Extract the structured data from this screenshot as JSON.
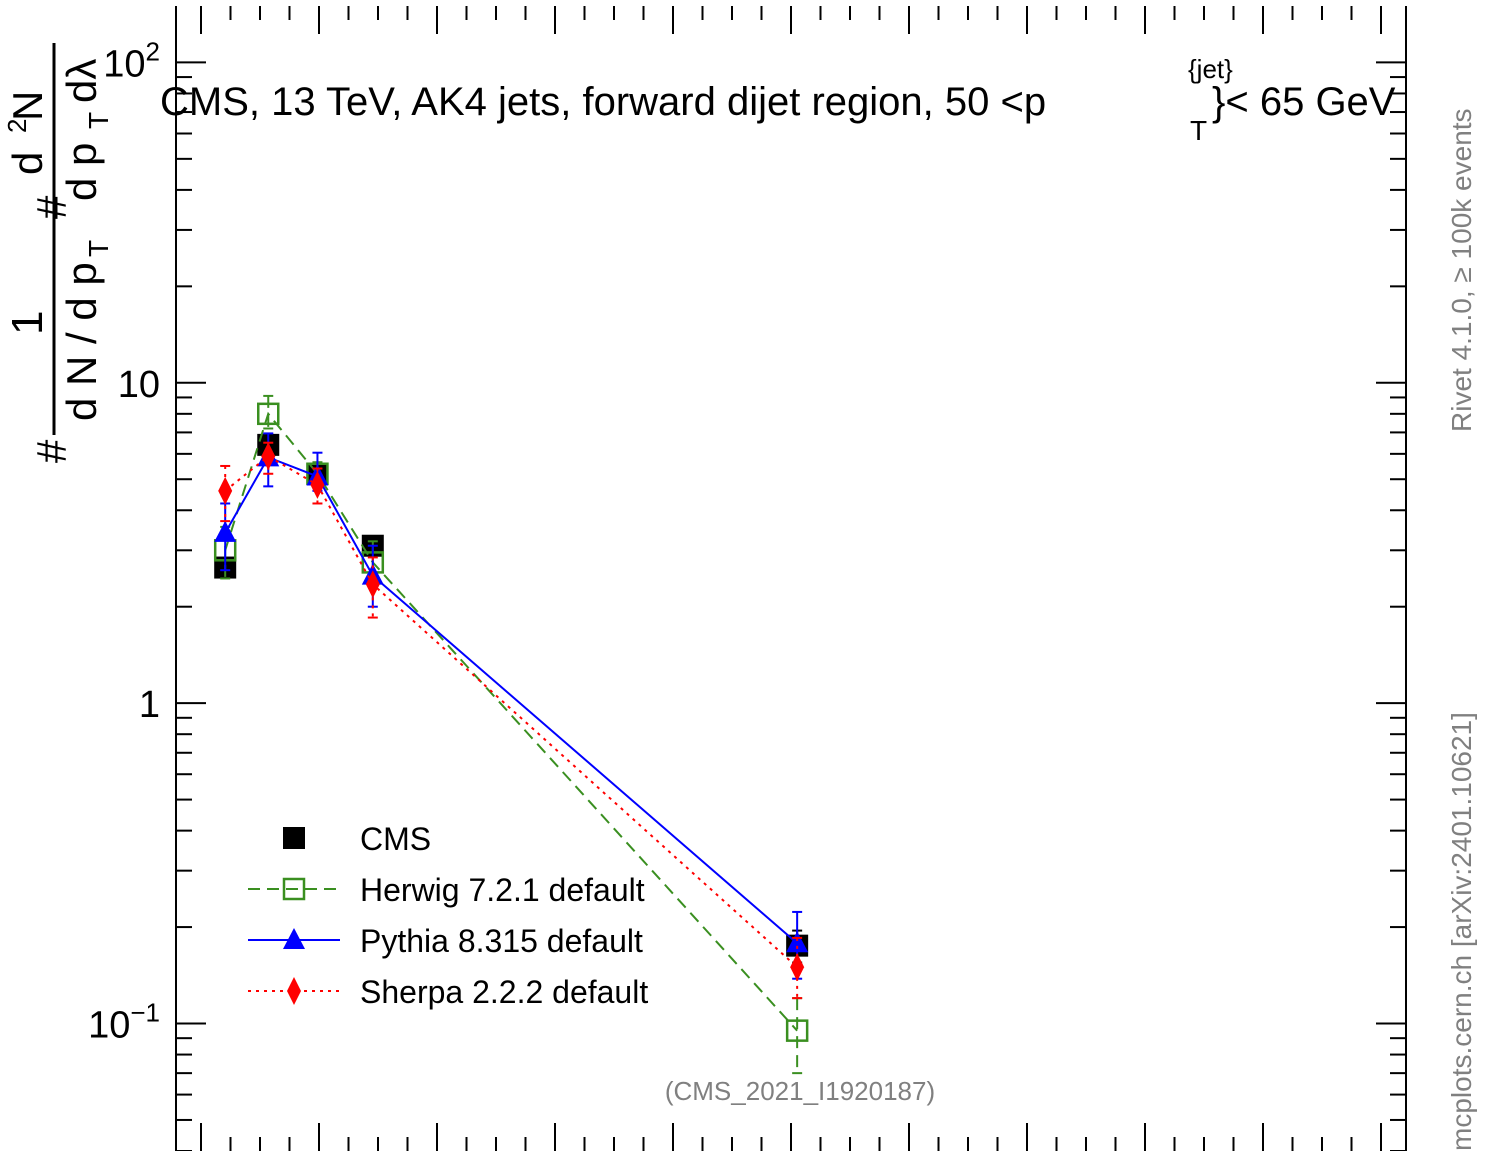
{
  "chart_data": {
    "type": "scatter",
    "title": "CMS, 13 TeV, AK4 jets, forward dijet region, 50 <p",
    "title_sup": "{jet}",
    "title_sub": "T",
    "title_tail": "}< 65 GeV",
    "ylabel_tail": "dλ",
    "yscale": "log",
    "ylim": [
      0.04,
      150
    ],
    "xlim": [
      0,
      1
    ],
    "y_ticks": [
      {
        "value": 100,
        "base": "10",
        "exp": "2"
      },
      {
        "value": 10,
        "base": "10",
        "exp": ""
      },
      {
        "value": 1,
        "base": "1",
        "exp": ""
      },
      {
        "value": 0.1,
        "base": "10",
        "exp": "−1"
      }
    ],
    "grid": false,
    "legend_position": "bottom-left",
    "series": [
      {
        "name": "CMS",
        "color": "#000000",
        "marker": "square-filled",
        "line": "none",
        "x": [
          0.04,
          0.075,
          0.115,
          0.16,
          0.505
        ],
        "y": [
          2.65,
          6.4,
          5.2,
          3.1,
          0.175
        ],
        "err_lo": [
          0.15,
          0.5,
          0.3,
          0.2,
          0.02
        ],
        "err_hi": [
          0.15,
          0.5,
          0.3,
          0.2,
          0.02
        ]
      },
      {
        "name": "Herwig 7.2.1 default",
        "color": "#3a8f20",
        "marker": "square-open",
        "line": "dashed",
        "x": [
          0.04,
          0.075,
          0.115,
          0.16,
          0.505
        ],
        "y": [
          3.0,
          8.0,
          5.2,
          2.75,
          0.095
        ],
        "err_lo": [
          0.55,
          0.8,
          0.45,
          0.35,
          0.025
        ],
        "err_hi": [
          0.55,
          1.1,
          0.45,
          0.45,
          0.025
        ]
      },
      {
        "name": "Pythia 8.315 default",
        "color": "#0000ff",
        "marker": "triangle",
        "line": "solid",
        "x": [
          0.04,
          0.075,
          0.115,
          0.16,
          0.505
        ],
        "y": [
          3.4,
          5.85,
          5.1,
          2.5,
          0.178
        ],
        "err_lo": [
          0.8,
          1.1,
          0.5,
          0.5,
          0.04
        ],
        "err_hi": [
          0.8,
          1.1,
          0.95,
          0.6,
          0.045
        ]
      },
      {
        "name": "Sherpa 2.2.2 default",
        "color": "#ff0000",
        "marker": "diamond",
        "line": "dotted",
        "x": [
          0.04,
          0.075,
          0.115,
          0.16,
          0.505
        ],
        "y": [
          4.6,
          5.9,
          4.8,
          2.35,
          0.15
        ],
        "err_lo": [
          0.9,
          0.7,
          0.6,
          0.5,
          0.03
        ],
        "err_hi": [
          0.9,
          0.6,
          0.6,
          0.5,
          0.035
        ]
      }
    ],
    "annotations": {
      "analysis_id": "(CMS_2021_I1920187)",
      "rivet": "Rivet 4.1.0, ≥ 100k events",
      "mcplots": "mcplots.cern.ch [arXiv:2401.10621]"
    }
  }
}
